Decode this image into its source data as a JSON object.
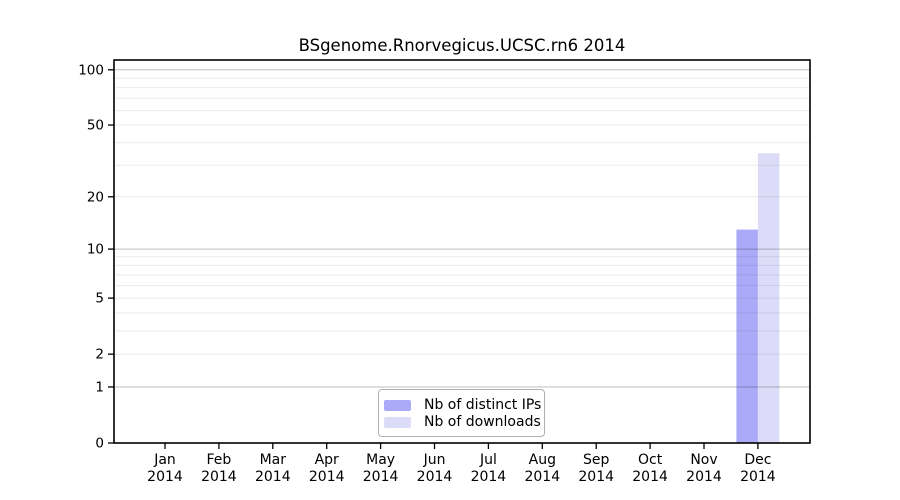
{
  "title": "BSgenome.Rnorvegicus.UCSC.rn6 2014",
  "chart_data": {
    "type": "bar",
    "title": "BSgenome.Rnorvegicus.UCSC.rn6 2014",
    "x_categories": [
      "Jan",
      "Feb",
      "Mar",
      "Apr",
      "May",
      "Jun",
      "Jul",
      "Aug",
      "Sep",
      "Oct",
      "Nov",
      "Dec"
    ],
    "x_year": "2014",
    "series": [
      {
        "name": "Nb of distinct IPs",
        "color": "#aaaaf8",
        "values": [
          0,
          0,
          0,
          0,
          0,
          0,
          0,
          0,
          0,
          0,
          0,
          13
        ]
      },
      {
        "name": "Nb of downloads",
        "color": "#dcdcf8",
        "values": [
          0,
          0,
          0,
          0,
          0,
          0,
          0,
          0,
          0,
          0,
          0,
          35
        ]
      }
    ],
    "y_scale": "log1p",
    "y_ticks": [
      0,
      1,
      2,
      5,
      10,
      20,
      50,
      100
    ],
    "y_major_grid": [
      1,
      10,
      100
    ],
    "y_minor_grid": [
      2,
      3,
      4,
      5,
      6,
      7,
      8,
      9,
      20,
      30,
      40,
      50,
      60,
      70,
      80,
      90
    ],
    "ylim": [
      0,
      113
    ],
    "grid": true,
    "legend_position": "bottom-center"
  },
  "colors": {
    "background": "#ffffff",
    "axis": "#000000",
    "grid_major": "rgba(0,0,0,0.25)",
    "grid_minor": "rgba(0,0,0,0.08)",
    "legend_border": "#b0b0b0"
  }
}
